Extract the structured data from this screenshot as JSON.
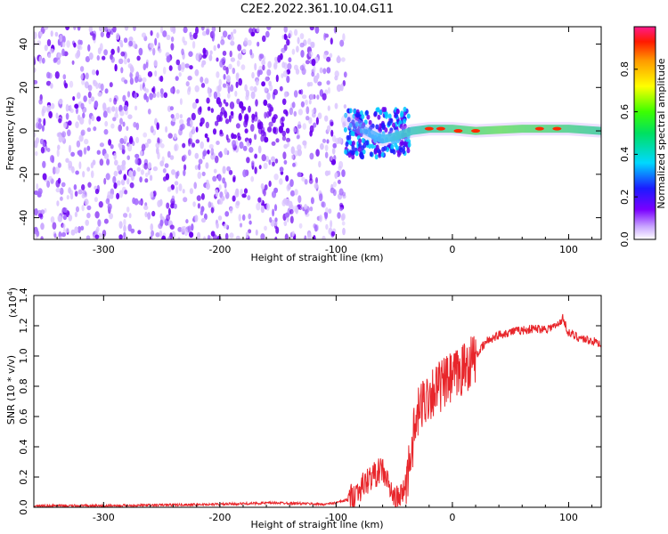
{
  "title": "C2E2.2022.361.10.04.G11",
  "colors": {
    "spectro_light": "#d9c2ff",
    "spectro_mid": "#a56bff",
    "spectro_dark": "#6a00f0",
    "snr_line": "#e8262b"
  },
  "chart_data": [
    {
      "type": "heatmap",
      "name": "spectrogram",
      "xlabel": "Height of straight line (km)",
      "ylabel": "Frequency (Hz)",
      "xlim": [
        -360,
        128
      ],
      "ylim": [
        -50,
        48
      ],
      "xticks": [
        -300,
        -200,
        -100,
        0,
        100
      ],
      "xtick_labels": [
        "-300",
        "-200",
        "-100",
        "0",
        "100"
      ],
      "yticks": [
        -40,
        -20,
        0,
        20,
        40
      ],
      "ytick_labels": [
        "-40",
        "-20",
        "0",
        "20",
        "40"
      ],
      "ridge": [
        {
          "x": -90,
          "y": 5
        },
        {
          "x": -75,
          "y": 0
        },
        {
          "x": -60,
          "y": -4
        },
        {
          "x": -45,
          "y": -2
        },
        {
          "x": -35,
          "y": 0
        },
        {
          "x": -20,
          "y": 1
        },
        {
          "x": 0,
          "y": 1
        },
        {
          "x": 20,
          "y": 0
        },
        {
          "x": 60,
          "y": 1
        },
        {
          "x": 100,
          "y": 1
        },
        {
          "x": 128,
          "y": 0
        }
      ],
      "colorbar": {
        "label": "Normalized spectral amplitude",
        "range": [
          0.0,
          1.0
        ],
        "ticks": [
          0.0,
          0.2,
          0.4,
          0.6,
          0.8
        ],
        "tick_labels": [
          "0.0",
          "0.2",
          "0.4",
          "0.6",
          "0.8"
        ]
      }
    },
    {
      "type": "line",
      "name": "snr",
      "xlabel": "Height of straight line (km)",
      "ylabel": "SNR (10 * v/v)",
      "scale_note_base": "(x10",
      "scale_note_exp": "4",
      "scale_note_end": ")",
      "xlim": [
        -360,
        128
      ],
      "ylim": [
        0.0,
        1.4
      ],
      "xticks": [
        -300,
        -200,
        -100,
        0,
        100
      ],
      "xtick_labels": [
        "-300",
        "-200",
        "-100",
        "0",
        "100"
      ],
      "yticks": [
        0.0,
        0.2,
        0.4,
        0.6,
        0.8,
        1.0,
        1.2,
        1.4
      ],
      "ytick_labels": [
        "0.0",
        "0.2",
        "0.4",
        "0.6",
        "0.8",
        "1.0",
        "1.2",
        "1.4"
      ],
      "x": [
        -360,
        -300,
        -200,
        -150,
        -110,
        -100,
        -90,
        -80,
        -70,
        -60,
        -55,
        -50,
        -45,
        -40,
        -35,
        -30,
        -25,
        -20,
        -15,
        -10,
        0,
        10,
        20,
        30,
        40,
        50,
        60,
        70,
        80,
        90,
        95,
        100,
        110,
        120,
        128
      ],
      "values": [
        0.01,
        0.01,
        0.02,
        0.03,
        0.02,
        0.03,
        0.05,
        0.12,
        0.2,
        0.25,
        0.15,
        0.05,
        0.06,
        0.15,
        0.4,
        0.6,
        0.7,
        0.75,
        0.78,
        0.8,
        0.85,
        0.92,
        1.0,
        1.1,
        1.14,
        1.16,
        1.17,
        1.18,
        1.18,
        1.2,
        1.25,
        1.15,
        1.12,
        1.1,
        1.08
      ]
    }
  ]
}
